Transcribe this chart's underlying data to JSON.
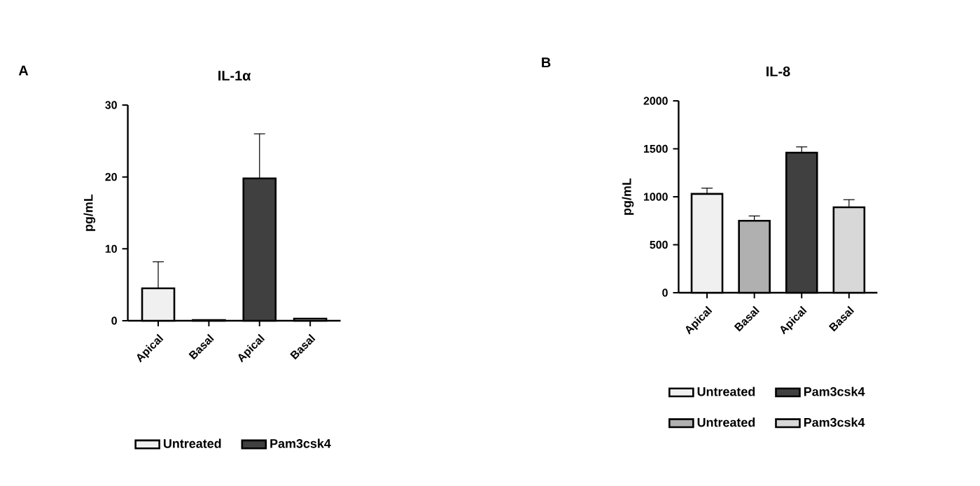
{
  "chart_data": [
    {
      "type": "bar",
      "title": "IL-1α",
      "ylabel": "pg/mL",
      "annotations": [
        "A"
      ],
      "categories": [
        "Apical",
        "Basal",
        "Apical",
        "Basal"
      ],
      "series": [
        {
          "name": "Untreated",
          "color": "#f0f0f0",
          "values": [
            4.5,
            null,
            null,
            null
          ],
          "errors": [
            3.7,
            null,
            null,
            null
          ]
        },
        {
          "name": "Pam3csk4",
          "color": "#404040",
          "values": [
            null,
            null,
            19.8,
            null
          ],
          "errors": [
            null,
            null,
            6.2,
            null
          ]
        },
        {
          "color": "#b0b0b0",
          "values": [
            null,
            0.1,
            null,
            null
          ]
        },
        {
          "color": "#d8d8d8",
          "values": [
            null,
            null,
            null,
            0.3
          ]
        }
      ],
      "ylim": [
        0,
        30
      ],
      "yticks": [
        0,
        10,
        20,
        30
      ],
      "grid": false,
      "legend": "bottom"
    },
    {
      "type": "bar",
      "title": "IL-8",
      "ylabel": "pg/mL",
      "annotations": [
        "B"
      ],
      "categories": [
        "Apical",
        "Basal",
        "Apical",
        "Basal"
      ],
      "series": [
        {
          "name": "Untreated",
          "color": "#f0f0f0",
          "values": [
            1030,
            null,
            null,
            null
          ],
          "errors": [
            60,
            null,
            null,
            null
          ]
        },
        {
          "name": "Pam3csk4",
          "color": "#404040",
          "values": [
            null,
            null,
            1460,
            null
          ],
          "errors": [
            null,
            null,
            60,
            null
          ]
        },
        {
          "name": "Untreated",
          "color": "#b0b0b0",
          "values": [
            null,
            750,
            null,
            null
          ],
          "errors": [
            null,
            50,
            null,
            null
          ]
        },
        {
          "name": "Pam3csk4",
          "color": "#d8d8d8",
          "values": [
            null,
            null,
            null,
            890
          ],
          "errors": [
            null,
            null,
            null,
            80
          ]
        }
      ],
      "ylim": [
        0,
        2000
      ],
      "yticks": [
        0,
        500,
        1000,
        1500,
        2000
      ],
      "grid": false,
      "legend": "bottom"
    }
  ]
}
